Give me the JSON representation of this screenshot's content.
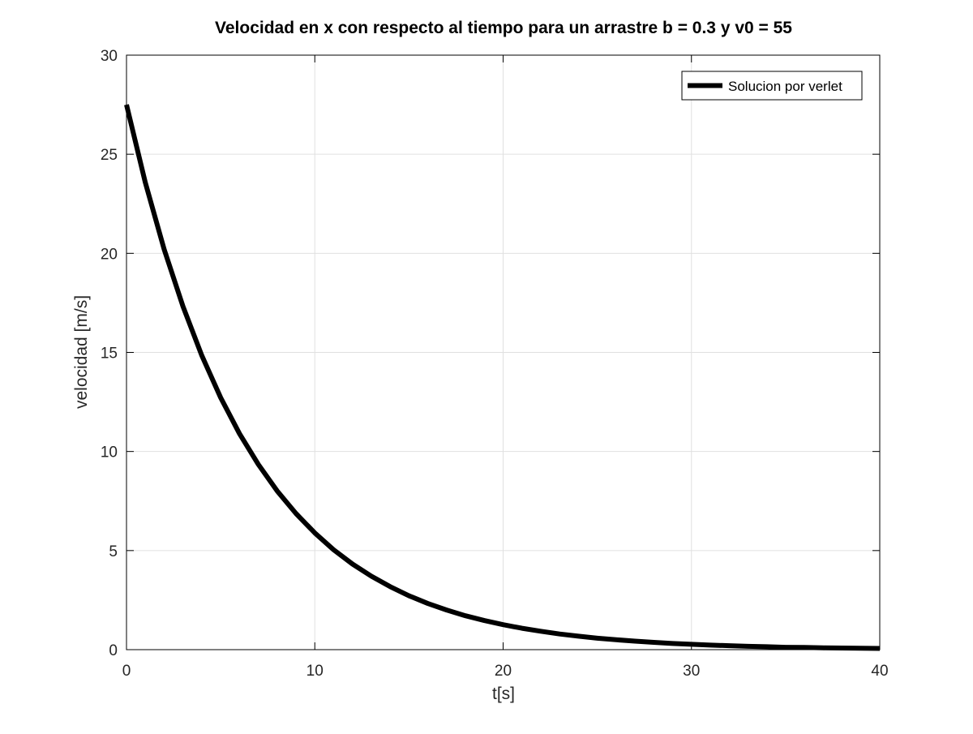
{
  "chart_data": {
    "type": "line",
    "title": "Velocidad en x con respecto al tiempo para un arrastre b = 0.3 y  v0 = 55",
    "xlabel": "t[s]",
    "ylabel": "velocidad [m/s]",
    "xlim": [
      0,
      40
    ],
    "ylim": [
      0,
      30
    ],
    "xticks": [
      0,
      10,
      20,
      30,
      40
    ],
    "yticks": [
      0,
      5,
      10,
      15,
      20,
      25,
      30
    ],
    "grid": true,
    "legend_position": "top-right",
    "series": [
      {
        "name": "Solucion por verlet",
        "color": "#000000",
        "x": [
          0,
          1,
          2,
          3,
          4,
          5,
          6,
          7,
          8,
          9,
          10,
          11,
          12,
          13,
          14,
          15,
          16,
          17,
          18,
          19,
          20,
          21,
          22,
          23,
          24,
          25,
          26,
          27,
          28,
          29,
          30,
          31,
          32,
          33,
          34,
          35,
          36,
          37,
          38,
          39,
          40
        ],
        "y": [
          27.5,
          23.57,
          20.2,
          17.32,
          14.84,
          12.72,
          10.9,
          9.35,
          8.01,
          6.87,
          5.89,
          5.04,
          4.32,
          3.71,
          3.18,
          2.72,
          2.33,
          2.0,
          1.71,
          1.47,
          1.26,
          1.08,
          0.93,
          0.79,
          0.68,
          0.58,
          0.5,
          0.43,
          0.37,
          0.31,
          0.27,
          0.23,
          0.2,
          0.17,
          0.15,
          0.12,
          0.11,
          0.09,
          0.08,
          0.07,
          0.06
        ]
      }
    ]
  }
}
